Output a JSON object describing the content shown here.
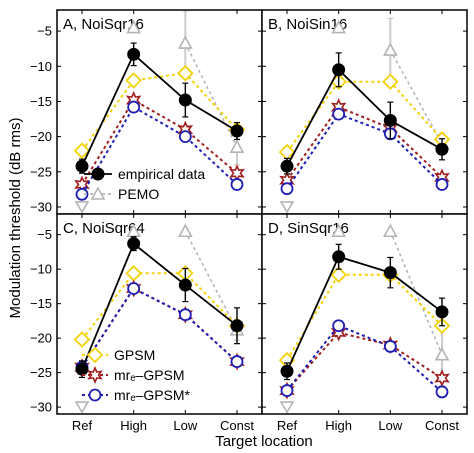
{
  "figure": {
    "xlabel": "Target location",
    "ylabel": "Modulation threshold (dB rms)"
  },
  "colors": {
    "empirical": "#000000",
    "pemo": "#b4b4b4",
    "gpsm": "#f5d20a",
    "mre_gpsm": "#a01e1e",
    "mre_gpsm_star": "#1e1eb4"
  },
  "legend_top": [
    {
      "key": "empirical",
      "label": "empirical data"
    },
    {
      "key": "pemo",
      "label": "PEMO"
    }
  ],
  "legend_bottom": [
    {
      "key": "gpsm",
      "label": "GPSM"
    },
    {
      "key": "mre_gpsm",
      "label": "mrₑ–GPSM"
    },
    {
      "key": "mre_gpsm_star",
      "label": "mrₑ–GPSM*"
    }
  ],
  "chart_data": [
    {
      "type": "line",
      "title": "A, NoiSqr16",
      "categories": [
        "Ref",
        "High",
        "Low",
        "Const"
      ],
      "ylim": [
        -31,
        -2
      ],
      "yticks": [
        -5,
        -10,
        -15,
        -20,
        -25,
        -30
      ],
      "series": [
        {
          "key": "empirical",
          "name": "empirical data",
          "values": [
            -24.2,
            -8.3,
            -14.8,
            -19.2
          ],
          "err": [
            1.0,
            1.6,
            2.4,
            1.2
          ]
        },
        {
          "key": "pemo",
          "name": "PEMO",
          "values": [
            -30,
            -4.5,
            -6.7,
            -21.5
          ],
          "err": [
            0,
            0,
            4.5,
            2.5
          ],
          "below": [
            true,
            false,
            false,
            false
          ]
        },
        {
          "key": "gpsm",
          "name": "GPSM",
          "values": [
            -22,
            -12,
            -11,
            -19
          ]
        },
        {
          "key": "mre_gpsm",
          "name": "mrₑ–GPSM",
          "values": [
            -26.8,
            -14.8,
            -19,
            -25.2
          ]
        },
        {
          "key": "mre_gpsm_star",
          "name": "mrₑ–GPSM*",
          "values": [
            -28.2,
            -15.8,
            -20,
            -26.8
          ]
        }
      ]
    },
    {
      "type": "line",
      "title": "B, NoiSin16",
      "categories": [
        "Ref",
        "High",
        "Low",
        "Const"
      ],
      "ylim": [
        -31,
        -2
      ],
      "yticks": [
        -5,
        -10,
        -15,
        -20,
        -25,
        -30
      ],
      "series": [
        {
          "key": "empirical",
          "name": "empirical data",
          "values": [
            -24.2,
            -10.5,
            -17.7,
            -21.8
          ],
          "err": [
            1.1,
            2.4,
            2.6,
            1.5
          ]
        },
        {
          "key": "pemo",
          "name": "PEMO",
          "values": [
            -30,
            -4.5,
            -7.7,
            -21
          ],
          "err": [
            0,
            0,
            4.5,
            1.5
          ],
          "below": [
            true,
            false,
            false,
            false
          ]
        },
        {
          "key": "gpsm",
          "name": "GPSM",
          "values": [
            -22.2,
            -12.2,
            -12.2,
            -20.4
          ]
        },
        {
          "key": "mre_gpsm",
          "name": "mrₑ–GPSM",
          "values": [
            -26.2,
            -15.8,
            -18.8,
            -25.8
          ]
        },
        {
          "key": "mre_gpsm_star",
          "name": "mrₑ–GPSM*",
          "values": [
            -27.4,
            -16.8,
            -19.6,
            -26.8
          ]
        }
      ]
    },
    {
      "type": "line",
      "title": "C, NoiSqr64",
      "categories": [
        "Ref",
        "High",
        "Low",
        "Const"
      ],
      "ylim": [
        -31,
        -2
      ],
      "yticks": [
        -5,
        -10,
        -15,
        -20,
        -25,
        -30
      ],
      "series": [
        {
          "key": "empirical",
          "name": "empirical data",
          "values": [
            -24.5,
            -6.3,
            -12.3,
            -18.2
          ],
          "err": [
            1.2,
            1.0,
            2.4,
            2.6
          ]
        },
        {
          "key": "pemo",
          "name": "PEMO",
          "values": [
            -30,
            -4.5,
            -4.5,
            -18.8
          ],
          "err": [
            0,
            0,
            0,
            1.5
          ],
          "below": [
            true,
            false,
            false,
            false
          ]
        },
        {
          "key": "gpsm",
          "name": "GPSM",
          "values": [
            -20.2,
            -10.6,
            -10.6,
            -18.2
          ]
        },
        {
          "key": "mre_gpsm",
          "name": "mrₑ–GPSM",
          "values": [
            -24.2,
            -12.8,
            -16.6,
            -23.4
          ]
        },
        {
          "key": "mre_gpsm_star",
          "name": "mrₑ–GPSM*",
          "values": [
            -24.2,
            -12.8,
            -16.6,
            -23.4
          ]
        }
      ]
    },
    {
      "type": "line",
      "title": "D, SinSqr16",
      "categories": [
        "Ref",
        "High",
        "Low",
        "Const"
      ],
      "ylim": [
        -31,
        -2
      ],
      "yticks": [
        -5,
        -10,
        -15,
        -20,
        -25,
        -30
      ],
      "series": [
        {
          "key": "empirical",
          "name": "empirical data",
          "values": [
            -24.8,
            -8.2,
            -10.5,
            -16.2
          ],
          "err": [
            1.2,
            1.8,
            2.2,
            2.0
          ]
        },
        {
          "key": "pemo",
          "name": "PEMO",
          "values": [
            -30,
            -4.5,
            -4.5,
            -22.4
          ],
          "err": [
            0,
            0,
            0,
            4.5
          ],
          "below": [
            true,
            false,
            false,
            false
          ]
        },
        {
          "key": "gpsm",
          "name": "GPSM",
          "values": [
            -23.2,
            -10.8,
            -10.8,
            -18.2
          ]
        },
        {
          "key": "mre_gpsm",
          "name": "mrₑ–GPSM",
          "values": [
            -27.6,
            -19.2,
            -21,
            -25.8
          ]
        },
        {
          "key": "mre_gpsm_star",
          "name": "mrₑ–GPSM*",
          "values": [
            -27.6,
            -18.2,
            -21.2,
            -27.8
          ]
        }
      ]
    }
  ]
}
